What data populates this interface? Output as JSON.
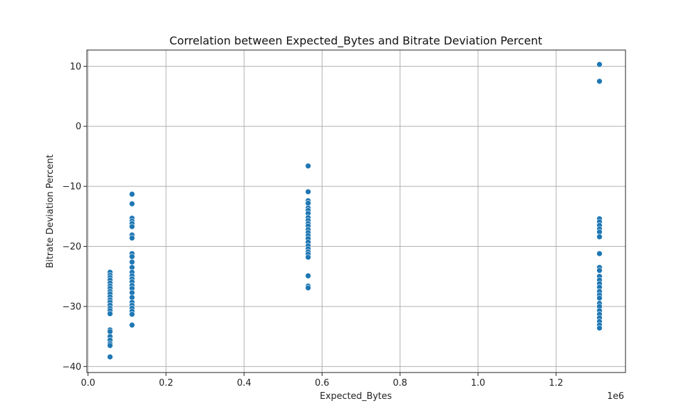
{
  "chart_data": {
    "type": "scatter",
    "title": "Correlation between Expected_Bytes and Bitrate Deviation Percent",
    "xlabel": "Expected_Bytes",
    "ylabel": "Bitrate Deviation Percent",
    "x_offset_label": "1e6",
    "xlim": [
      -0.003,
      1.378
    ],
    "ylim": [
      -41.0,
      12.7
    ],
    "x_ticks": [
      0.0,
      0.2,
      0.4,
      0.6,
      0.8,
      1.0,
      1.2
    ],
    "x_tick_labels": [
      "0.0",
      "0.2",
      "0.4",
      "0.6",
      "0.8",
      "1.0",
      "1.2"
    ],
    "y_ticks": [
      -40,
      -30,
      -20,
      -10,
      0,
      10
    ],
    "y_tick_labels": [
      "−40",
      "−30",
      "−20",
      "−10",
      "0",
      "10"
    ],
    "grid": true,
    "color": "#1f77b4",
    "series": [
      {
        "x": 0.0564,
        "y": [
          -24.3,
          -24.8,
          -25.2,
          -25.6,
          -26.1,
          -26.6,
          -27.0,
          -27.5,
          -27.9,
          -28.4,
          -28.9,
          -29.3,
          -29.8,
          -30.3,
          -30.7,
          -31.2,
          -33.9,
          -34.2,
          -35.0,
          -35.6,
          -36.2,
          -36.5,
          -38.4
        ]
      },
      {
        "x": 0.1128,
        "y": [
          -11.3,
          -12.9,
          -15.3,
          -15.8,
          -16.2,
          -16.7,
          -18.1,
          -18.6,
          -21.2,
          -21.7,
          -22.6,
          -23.5,
          -24.3,
          -24.9,
          -25.4,
          -25.9,
          -26.5,
          -27.0,
          -27.7,
          -28.5,
          -29.3,
          -29.8,
          -30.3,
          -30.8,
          -31.3,
          -33.1
        ]
      },
      {
        "x": 0.5643,
        "y": [
          -6.6,
          -10.9,
          -12.4,
          -12.8,
          -13.6,
          -14.0,
          -14.5,
          -15.2,
          -15.7,
          -16.2,
          -16.6,
          -17.2,
          -17.7,
          -18.2,
          -18.7,
          -19.3,
          -19.9,
          -20.4,
          -20.9,
          -21.3,
          -21.8,
          -24.9,
          -26.6,
          -26.9
        ]
      },
      {
        "x": 1.3113,
        "y": [
          10.3,
          7.5,
          -15.4,
          -15.9,
          -16.5,
          -17.1,
          -17.6,
          -18.4,
          -21.2,
          -23.5,
          -24.0,
          -25.0,
          -25.6,
          -26.2,
          -26.8,
          -27.5,
          -28.1,
          -28.6,
          -29.5,
          -30.0,
          -30.7,
          -31.3,
          -31.9,
          -32.5,
          -33.1,
          -33.6
        ]
      }
    ]
  }
}
